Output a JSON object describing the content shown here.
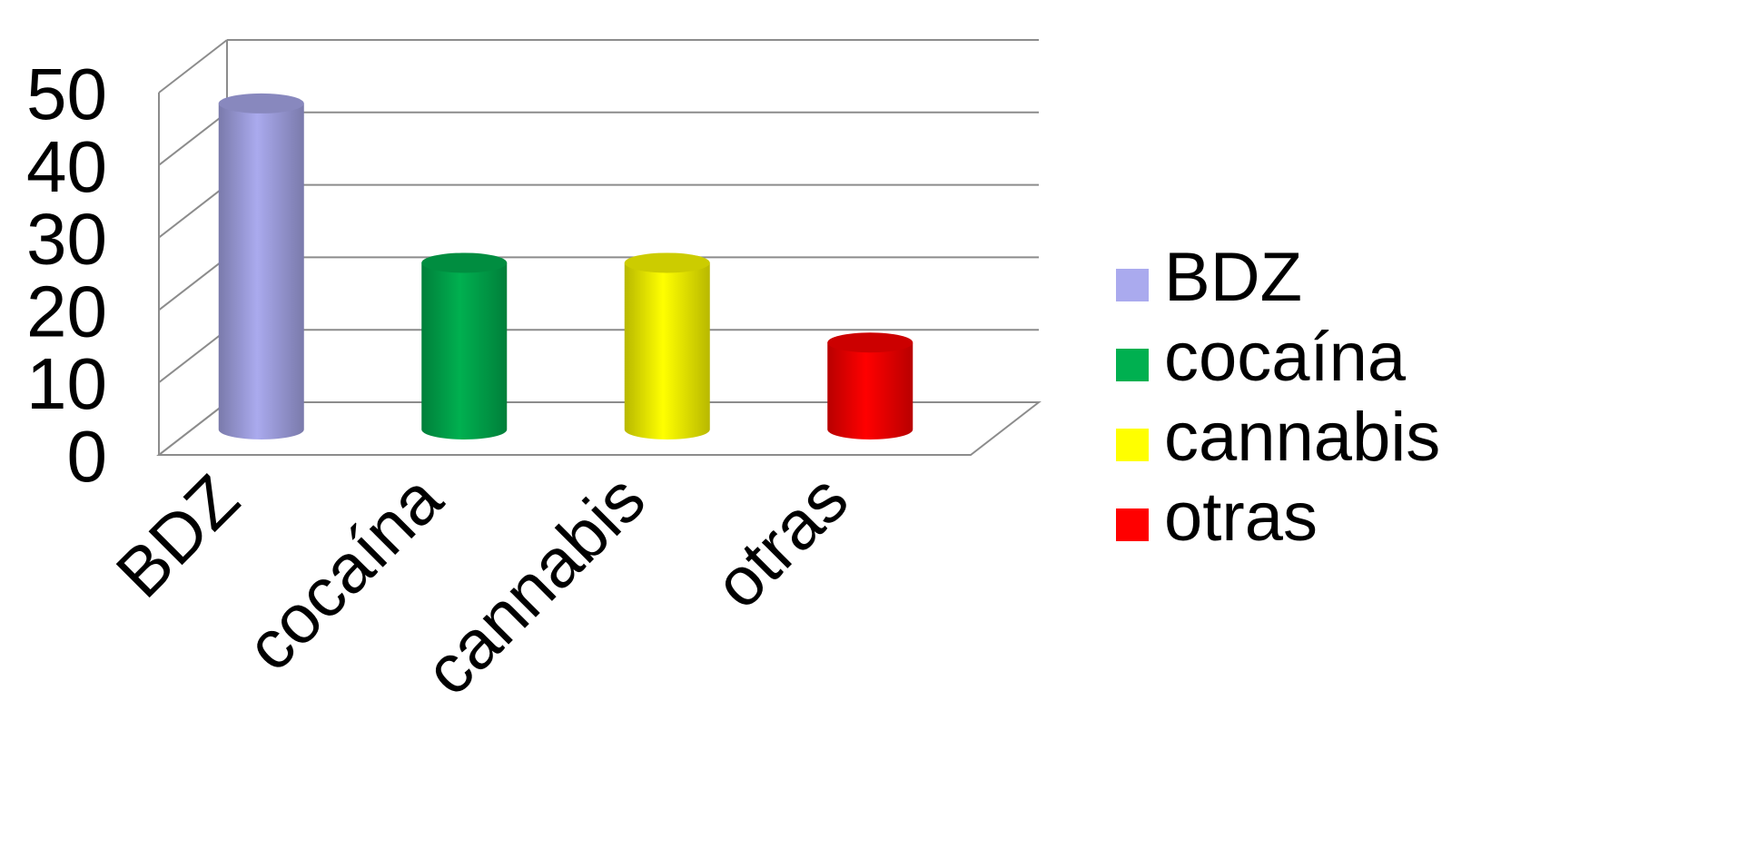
{
  "chart_data": {
    "type": "bar",
    "categories": [
      "BDZ",
      "cocaína",
      "cannabis",
      "otras"
    ],
    "series": [
      {
        "name": "BDZ",
        "values": [
          45,
          null,
          null,
          null
        ]
      },
      {
        "name": "cocaína",
        "values": [
          null,
          23,
          null,
          null
        ]
      },
      {
        "name": "cannabis",
        "values": [
          null,
          null,
          23,
          null
        ]
      },
      {
        "name": "otras",
        "values": [
          null,
          null,
          null,
          12
        ]
      }
    ],
    "yticks": [
      "0",
      "10",
      "20",
      "30",
      "40",
      "50"
    ],
    "ylim": [
      0,
      50
    ],
    "legend": [
      "BDZ",
      "cocaína",
      "cannabis",
      "otras"
    ],
    "legend_position": "right",
    "colors": [
      "#aaaaee",
      "#00b050",
      "#ffff00",
      "#ff0000"
    ],
    "grid": true,
    "style": "3d-cylinder"
  }
}
